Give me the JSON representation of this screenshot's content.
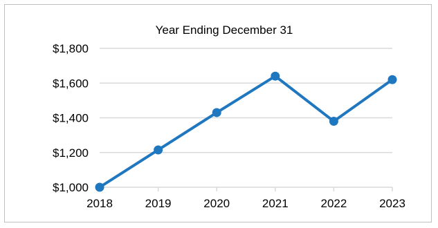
{
  "chart_data": {
    "type": "line",
    "title": "Year Ending December 31",
    "xlabel": "",
    "ylabel": "",
    "categories": [
      "2018",
      "2019",
      "2020",
      "2021",
      "2022",
      "2023"
    ],
    "series": [
      {
        "values": [
          1000,
          1215,
          1430,
          1640,
          1380,
          1620
        ]
      }
    ],
    "ylim": [
      1000,
      1800
    ],
    "yticks": [
      1000,
      1200,
      1400,
      1600,
      1800
    ],
    "ytick_labels": [
      "$1,000",
      "$1,200",
      "$1,400",
      "$1,600",
      "$1,800"
    ],
    "grid": "horizontal",
    "line_color": "#1f77c0",
    "grid_color": "#d9d9d9"
  }
}
